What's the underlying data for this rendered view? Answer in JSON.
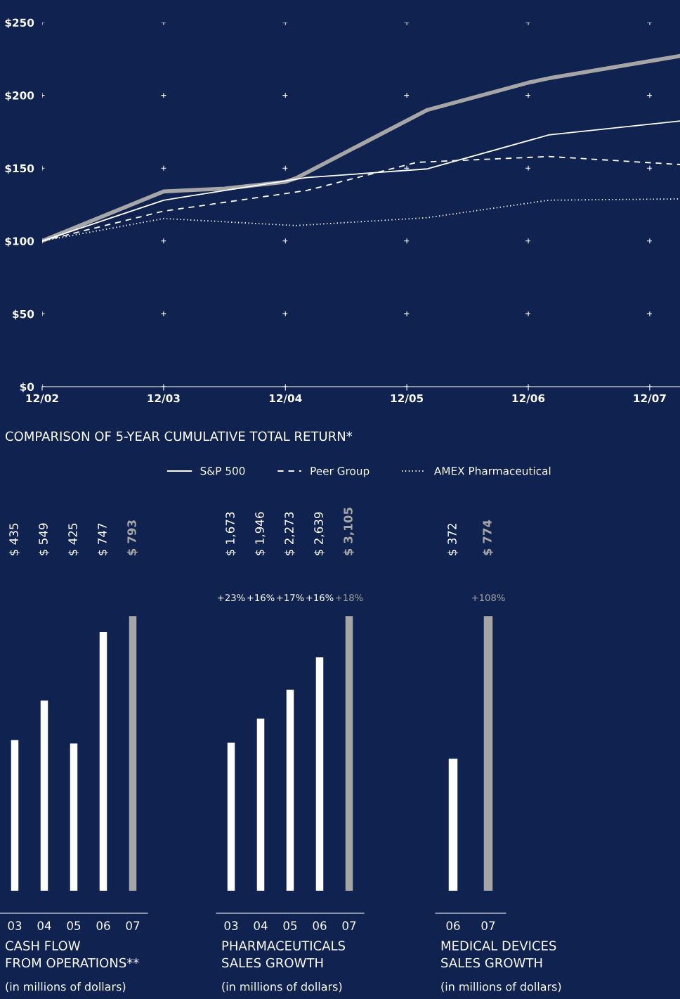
{
  "chart_data": [
    {
      "type": "line",
      "title": "COMPARISON OF 5-YEAR CUMULATIVE TOTAL RETURN*",
      "xlim": [
        "2002-12",
        "2008-03"
      ],
      "ylim": [
        0,
        250
      ],
      "xticks": [
        {
          "value": "2002-12",
          "label": "12/02"
        },
        {
          "value": "2003-12",
          "label": "12/03"
        },
        {
          "value": "2004-12",
          "label": "12/04"
        },
        {
          "value": "2005-12",
          "label": "12/05"
        },
        {
          "value": "2006-12",
          "label": "12/06"
        },
        {
          "value": "2007-12",
          "label": "12/07"
        }
      ],
      "yticks": [
        {
          "value": 0,
          "label": "$0"
        },
        {
          "value": 50,
          "label": "$50"
        },
        {
          "value": 100,
          "label": "$100"
        },
        {
          "value": 150,
          "label": "$150"
        },
        {
          "value": 200,
          "label": "$200"
        },
        {
          "value": 250,
          "label": "$250"
        }
      ],
      "grid": true,
      "legend": "bottom",
      "marker": "none",
      "series": [
        {
          "color": "#a6a6a6",
          "line_style": "solid",
          "x": [
            "2002-12",
            "2003-12",
            "2004-06",
            "2004-12",
            "2005-01",
            "2006-02",
            "2006-12",
            "2007-02",
            "2008-03"
          ],
          "values": [
            100,
            134,
            136,
            140.6,
            143,
            190,
            208.7,
            211.7,
            227
          ]
        },
        {
          "name": "S&P 500",
          "color": "#ffffff",
          "line_style": "solid",
          "x": [
            "2002-12",
            "2003-12",
            "2005-02",
            "2006-02",
            "2007-02",
            "2008-03"
          ],
          "values": [
            100,
            128,
            143.5,
            149.5,
            172.8,
            182.4
          ]
        },
        {
          "name": "Peer Group",
          "color": "#ffffff",
          "line_style": "dashed",
          "x": [
            "2002-12",
            "2003-12",
            "2005-02",
            "2006-01",
            "2007-02",
            "2008-03"
          ],
          "values": [
            100,
            120.5,
            134.6,
            154,
            158,
            152.5
          ]
        },
        {
          "name": "AMEX Pharmaceutical",
          "color": "#ffffff",
          "line_style": "dotted",
          "x": [
            "2002-12",
            "2003-12",
            "2005-01",
            "2006-02",
            "2007-02",
            "2008-03"
          ],
          "values": [
            100,
            115.4,
            110.6,
            116,
            128,
            128.9
          ]
        }
      ]
    },
    {
      "type": "bar",
      "title": "CASH FLOW\nFROM OPERATIONS**",
      "subtitle": "(in millions of dollars)",
      "categories": [
        "03",
        "04",
        "05",
        "06",
        "07"
      ],
      "values": [
        435,
        549,
        425,
        747,
        793
      ],
      "colors": [
        "#ffffff",
        "#ffffff",
        "#ffffff",
        "#ffffff",
        "#a6a6a6"
      ],
      "value_labels": [
        "$ 435",
        "$ 549",
        "$ 425",
        "$ 747",
        "$ 793"
      ]
    },
    {
      "type": "bar",
      "title": "PHARMACEUTICALS\nSALES GROWTH",
      "subtitle": "(in millions of dollars)",
      "categories": [
        "03",
        "04",
        "05",
        "06",
        "07"
      ],
      "values": [
        1673,
        1946,
        2273,
        2639,
        3105
      ],
      "colors": [
        "#ffffff",
        "#ffffff",
        "#ffffff",
        "#ffffff",
        "#a6a6a6"
      ],
      "value_labels": [
        "$ 1,673",
        "$ 1,946",
        "$ 2,273",
        "$ 2,639",
        "$ 3,105"
      ],
      "annotations": [
        "+23%",
        "+16%",
        "+17%",
        "+16%",
        "+18%"
      ]
    },
    {
      "type": "bar",
      "title": "MEDICAL DEVICES\nSALES GROWTH",
      "subtitle": "(in millions of dollars)",
      "categories": [
        "06",
        "07"
      ],
      "values": [
        372,
        774
      ],
      "colors": [
        "#ffffff",
        "#a6a6a6"
      ],
      "value_labels": [
        "$ 372",
        "$ 774"
      ],
      "annotations": [
        null,
        "+108%"
      ]
    }
  ]
}
